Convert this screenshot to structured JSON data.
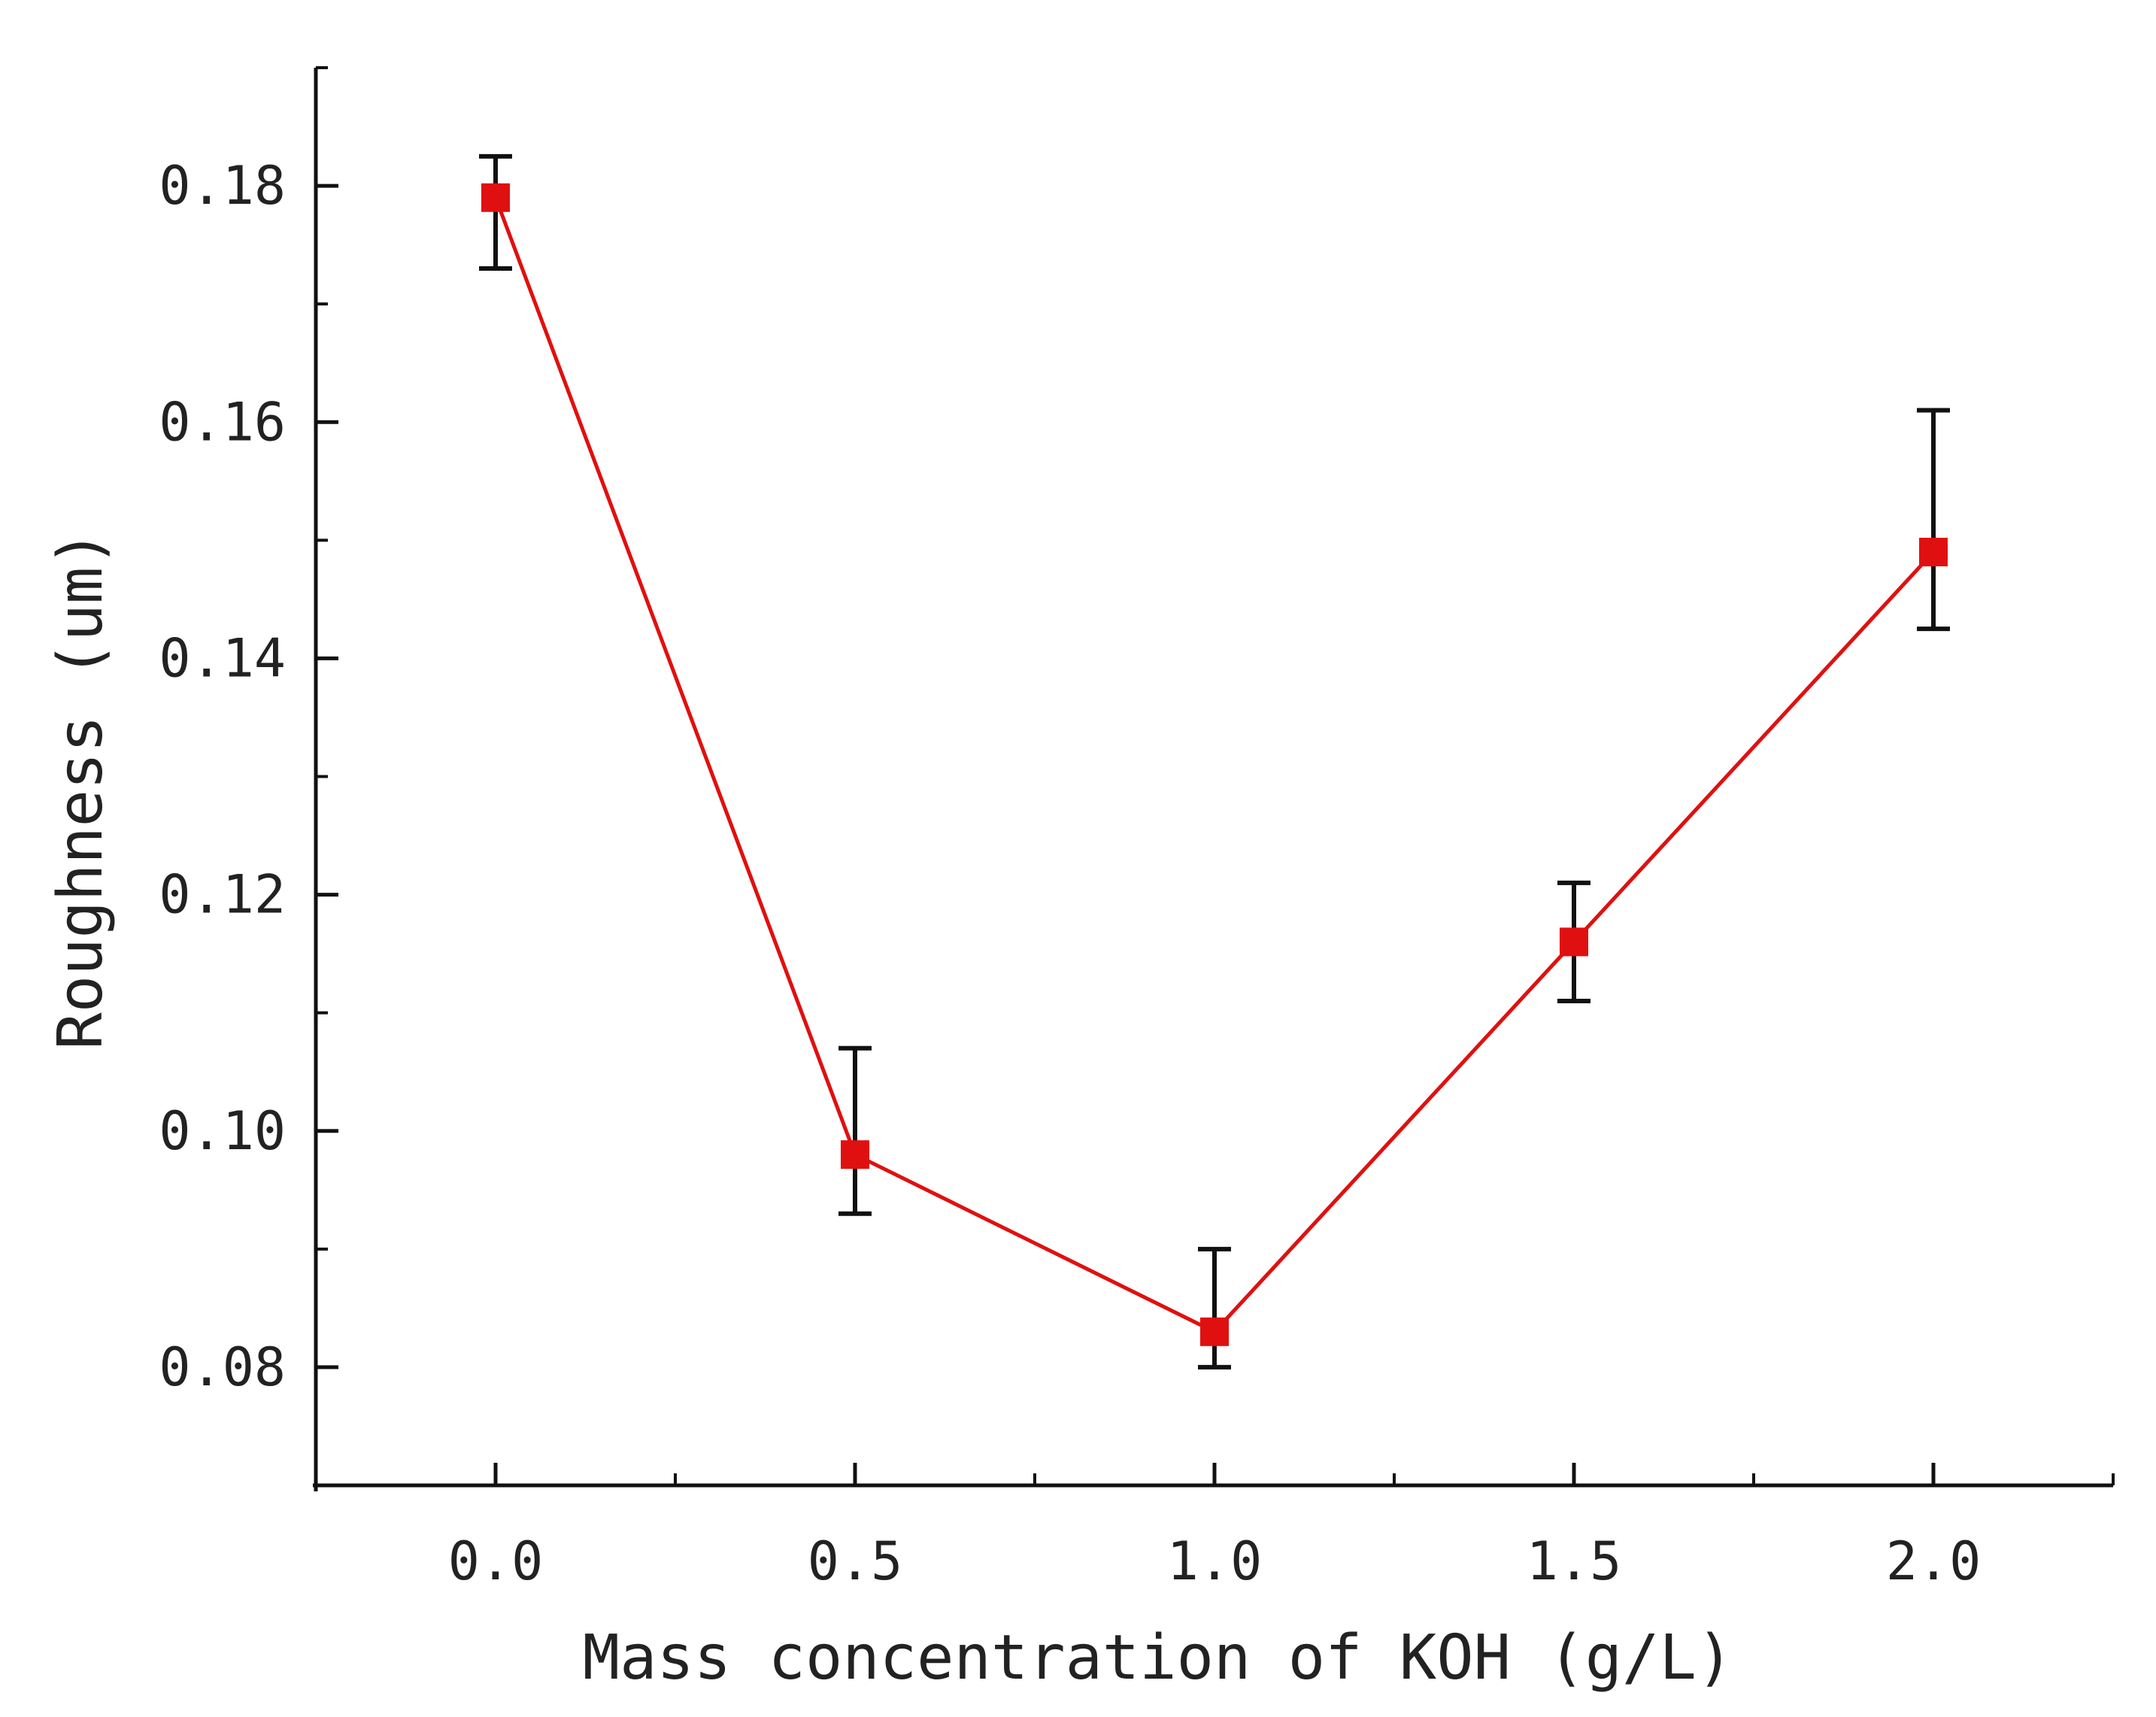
{
  "colors": {
    "series": "#e01010",
    "marker": "#e01010",
    "error_bar": "#111111",
    "axis": "#111111",
    "background": "#ffffff"
  },
  "chart_data": {
    "type": "line",
    "title": "",
    "xlabel": "Mass concentration of KOH (g/L)",
    "ylabel": "Roughness (um)",
    "xlim": [
      -0.25,
      2.25
    ],
    "ylim": [
      0.07,
      0.19
    ],
    "x_ticks": [
      0.0,
      0.5,
      1.0,
      1.5,
      2.0
    ],
    "x_tick_labels": [
      "0.0",
      "0.5",
      "1.0",
      "1.5",
      "2.0"
    ],
    "x_minor_ticks": [
      -0.25,
      0.25,
      0.75,
      1.25,
      1.75,
      2.25
    ],
    "y_ticks": [
      0.08,
      0.1,
      0.12,
      0.14,
      0.16,
      0.18
    ],
    "y_tick_labels": [
      "0.08",
      "0.10",
      "0.12",
      "0.14",
      "0.16",
      "0.18"
    ],
    "y_minor_ticks": [
      0.07,
      0.09,
      0.11,
      0.13,
      0.15,
      0.17,
      0.19
    ],
    "grid": false,
    "legend": "none",
    "series": [
      {
        "name": "Roughness",
        "x": [
          0.0,
          0.5,
          1.0,
          1.5,
          2.0
        ],
        "y": [
          0.179,
          0.098,
          0.083,
          0.116,
          0.149
        ],
        "error_low": [
          0.173,
          0.093,
          0.08,
          0.111,
          0.1425
        ],
        "error_high": [
          0.1825,
          0.107,
          0.09,
          0.121,
          0.161
        ],
        "marker": "square",
        "line": "solid"
      }
    ]
  }
}
